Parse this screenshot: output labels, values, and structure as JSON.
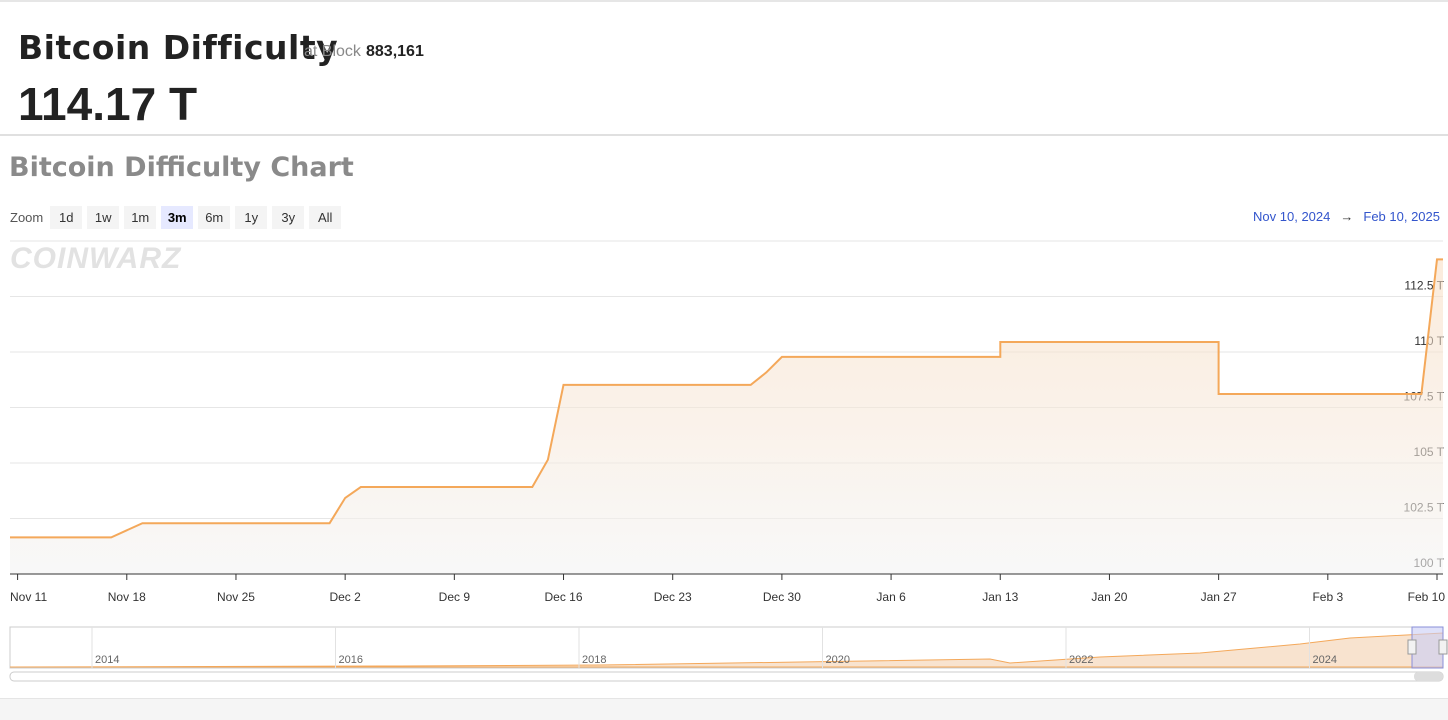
{
  "header": {
    "title": "Bitcoin Difficulty",
    "at_block_label": "at Block",
    "block": "883,161",
    "difficulty": "114.17 T"
  },
  "chart_section": {
    "title": "Bitcoin Difficulty Chart",
    "zoom_label": "Zoom",
    "zoom_buttons": [
      "1d",
      "1w",
      "1m",
      "3m",
      "6m",
      "1y",
      "3y",
      "All"
    ],
    "zoom_selected": "3m",
    "range_from": "Nov 10, 2024",
    "range_arrow": "→",
    "range_to": "Feb 10, 2025",
    "watermark": "COINWARZ",
    "navigator_labels": [
      "2014",
      "2016",
      "2018",
      "2020",
      "2022",
      "2024"
    ]
  },
  "chart_data": {
    "type": "line",
    "color": "#f4a85a",
    "area": true,
    "grid": true,
    "x": [
      "2024-11-10",
      "2024-11-17",
      "2024-11-19",
      "2024-12-01",
      "2024-12-02",
      "2024-12-03",
      "2024-12-14",
      "2024-12-15",
      "2024-12-16",
      "2024-12-28",
      "2024-12-29",
      "2024-12-30",
      "2025-01-13",
      "2025-01-13",
      "2025-01-27",
      "2025-01-27",
      "2025-02-09",
      "2025-02-10"
    ],
    "values": [
      101.65,
      101.65,
      102.29,
      102.29,
      103.43,
      103.92,
      103.92,
      105.15,
      108.52,
      108.52,
      109.08,
      109.78,
      109.78,
      110.45,
      110.45,
      108.11,
      108.11,
      114.17
    ],
    "xlim": [
      "2024-11-10",
      "2025-02-10"
    ],
    "xticks": [
      {
        "value": "2024-11-11",
        "label": "Nov 11"
      },
      {
        "value": "2024-11-18",
        "label": "Nov 18"
      },
      {
        "value": "2024-11-25",
        "label": "Nov 25"
      },
      {
        "value": "2024-12-02",
        "label": "Dec 2"
      },
      {
        "value": "2024-12-09",
        "label": "Dec 9"
      },
      {
        "value": "2024-12-16",
        "label": "Dec 16"
      },
      {
        "value": "2024-12-23",
        "label": "Dec 23"
      },
      {
        "value": "2024-12-30",
        "label": "Dec 30"
      },
      {
        "value": "2025-01-06",
        "label": "Jan 6"
      },
      {
        "value": "2025-01-13",
        "label": "Jan 13"
      },
      {
        "value": "2025-01-20",
        "label": "Jan 20"
      },
      {
        "value": "2025-01-27",
        "label": "Jan 27"
      },
      {
        "value": "2025-02-03",
        "label": "Feb 3"
      },
      {
        "value": "2025-02-10",
        "label": "Feb 10"
      }
    ],
    "ylim": [
      100,
      115
    ],
    "yticks": [
      {
        "value": 100,
        "label": "100 T"
      },
      {
        "value": 102.5,
        "label": "102.5 T"
      },
      {
        "value": 105,
        "label": "105 T"
      },
      {
        "value": 107.5,
        "label": "107.5 T"
      },
      {
        "value": 110,
        "label": "110 T"
      },
      {
        "value": 112.5,
        "label": "112.5 T"
      }
    ]
  }
}
